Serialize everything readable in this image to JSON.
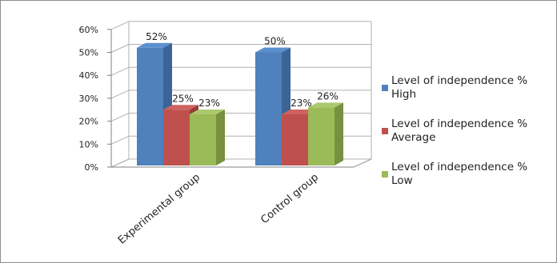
{
  "chart_data": {
    "type": "bar",
    "categories": [
      "Experimental group",
      "Control group"
    ],
    "series": [
      {
        "name": "Level of independence %\nHigh",
        "values": [
          52,
          50
        ],
        "color": "#4f81bd",
        "top": "#5b8fd0",
        "side": "#3a6596"
      },
      {
        "name": "Level of independence %\nAverage",
        "values": [
          25,
          23
        ],
        "color": "#c0504d",
        "top": "#cf6360",
        "side": "#943c3a"
      },
      {
        "name": "Level of independence %\nLow",
        "values": [
          23,
          26
        ],
        "color": "#9bbb59",
        "top": "#adc96f",
        "side": "#77913f"
      }
    ],
    "data_labels": [
      [
        "52%",
        "25%",
        "23%"
      ],
      [
        "50%",
        "23%",
        "26%"
      ]
    ],
    "y_ticks": [
      "0%",
      "10%",
      "20%",
      "30%",
      "40%",
      "50%",
      "60%"
    ],
    "ylim": [
      0,
      60
    ],
    "legend_position": "right",
    "bar_style": "3d-column"
  }
}
